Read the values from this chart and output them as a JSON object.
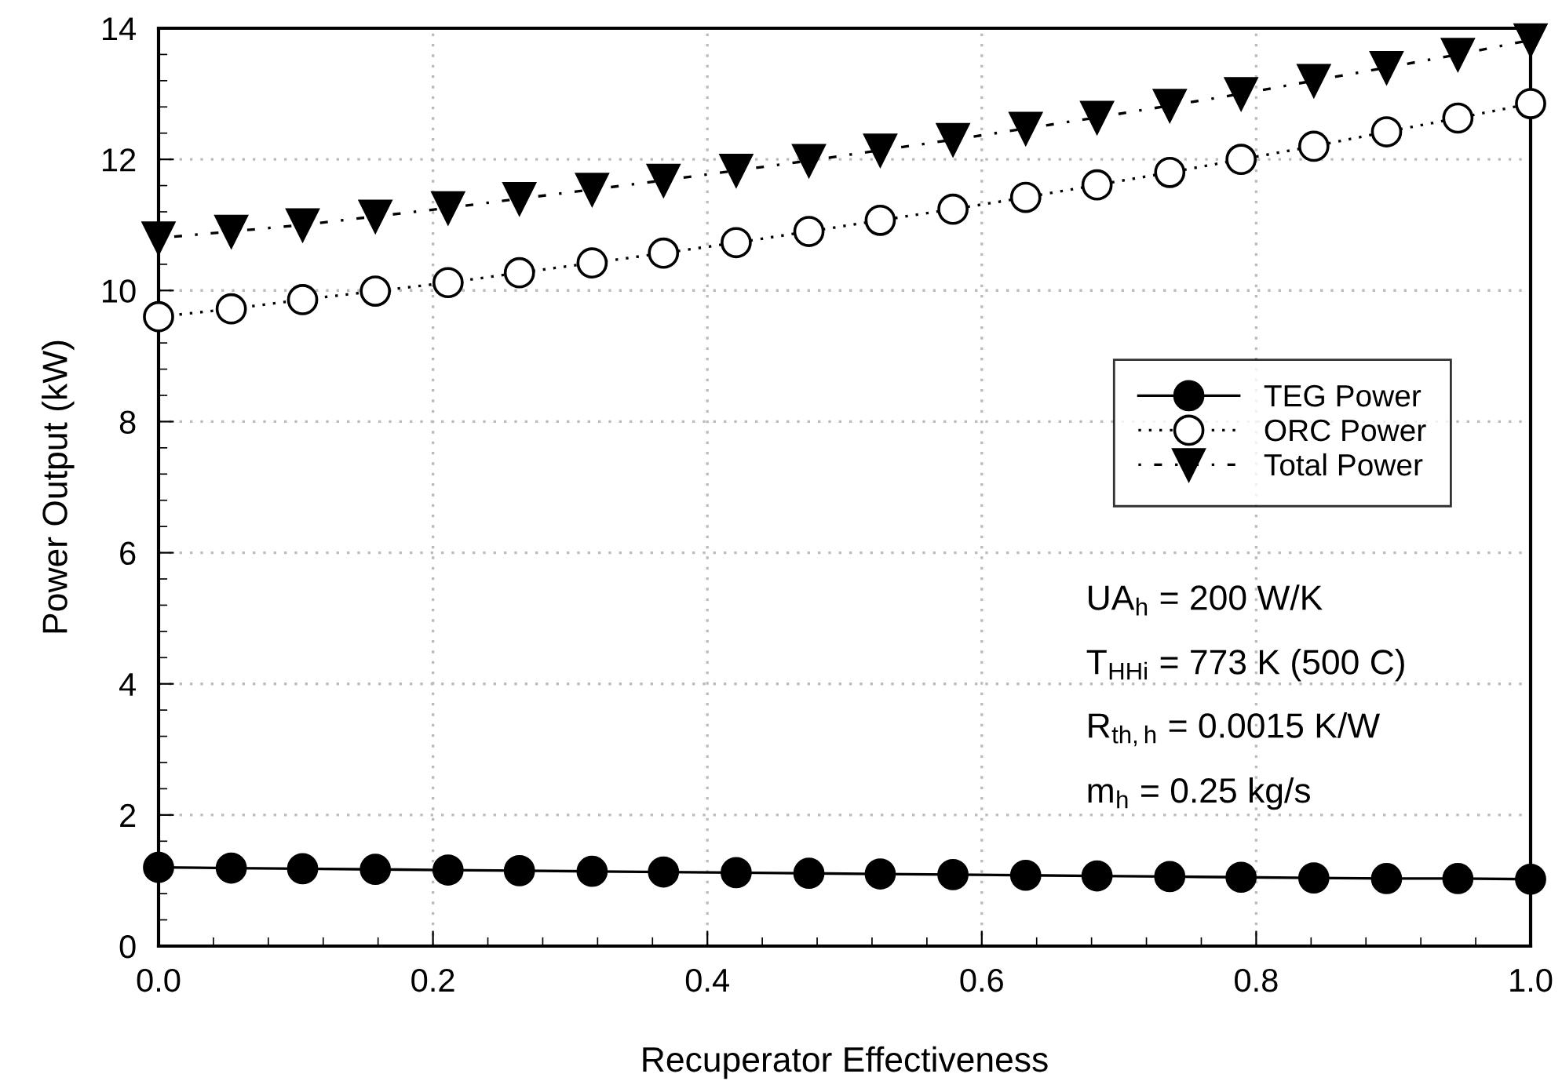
{
  "chart_data": {
    "type": "line",
    "xlabel": "Recuperator Effectiveness",
    "ylabel": "Power Output (kW)",
    "x": [
      0,
      0.053,
      0.105,
      0.158,
      0.211,
      0.263,
      0.316,
      0.368,
      0.421,
      0.474,
      0.526,
      0.579,
      0.632,
      0.684,
      0.737,
      0.789,
      0.842,
      0.895,
      0.947,
      1.0
    ],
    "series": [
      {
        "name": "TEG Power",
        "color": "#000000",
        "marker": "circle",
        "line_style": "solid",
        "values": [
          1.2,
          1.19,
          1.18,
          1.17,
          1.16,
          1.15,
          1.14,
          1.13,
          1.12,
          1.11,
          1.1,
          1.09,
          1.08,
          1.07,
          1.06,
          1.05,
          1.04,
          1.03,
          1.03,
          1.02
        ]
      },
      {
        "name": "ORC Power",
        "color": "#000000",
        "marker": "circle",
        "line_style": "dotted",
        "values": [
          9.6,
          9.72,
          9.86,
          9.99,
          10.12,
          10.27,
          10.42,
          10.57,
          10.73,
          10.9,
          11.07,
          11.24,
          11.42,
          11.61,
          11.8,
          12.0,
          12.2,
          12.42,
          12.63,
          12.85
        ]
      },
      {
        "name": "Total Power",
        "color": "#000000",
        "marker": "triangle",
        "line_style": "dashed",
        "values": [
          10.8,
          10.9,
          11.0,
          11.13,
          11.26,
          11.4,
          11.54,
          11.68,
          11.83,
          11.98,
          12.14,
          12.3,
          12.47,
          12.64,
          12.82,
          13.0,
          13.2,
          13.4,
          13.6,
          13.82
        ]
      }
    ],
    "xlim": [
      0,
      1.0
    ],
    "xticks": [
      {
        "value": 0,
        "label": "0.0"
      },
      0.2,
      0.4,
      0.6,
      0.8,
      {
        "value": 1.0,
        "label": "1.0"
      }
    ],
    "ylim": [
      0,
      14
    ],
    "yticks": [
      0,
      2,
      4,
      6,
      8,
      10,
      12,
      14
    ],
    "grid": true,
    "legend": "right",
    "annotations": [
      "UA$_{h}$ = 200 W/K",
      "T$_{HHi}$ = 773 K (500 C)",
      "R$_{th,h}$ = 0.0015 K/W",
      "m$_{h}$ = 0.25 kg/s"
    ]
  }
}
